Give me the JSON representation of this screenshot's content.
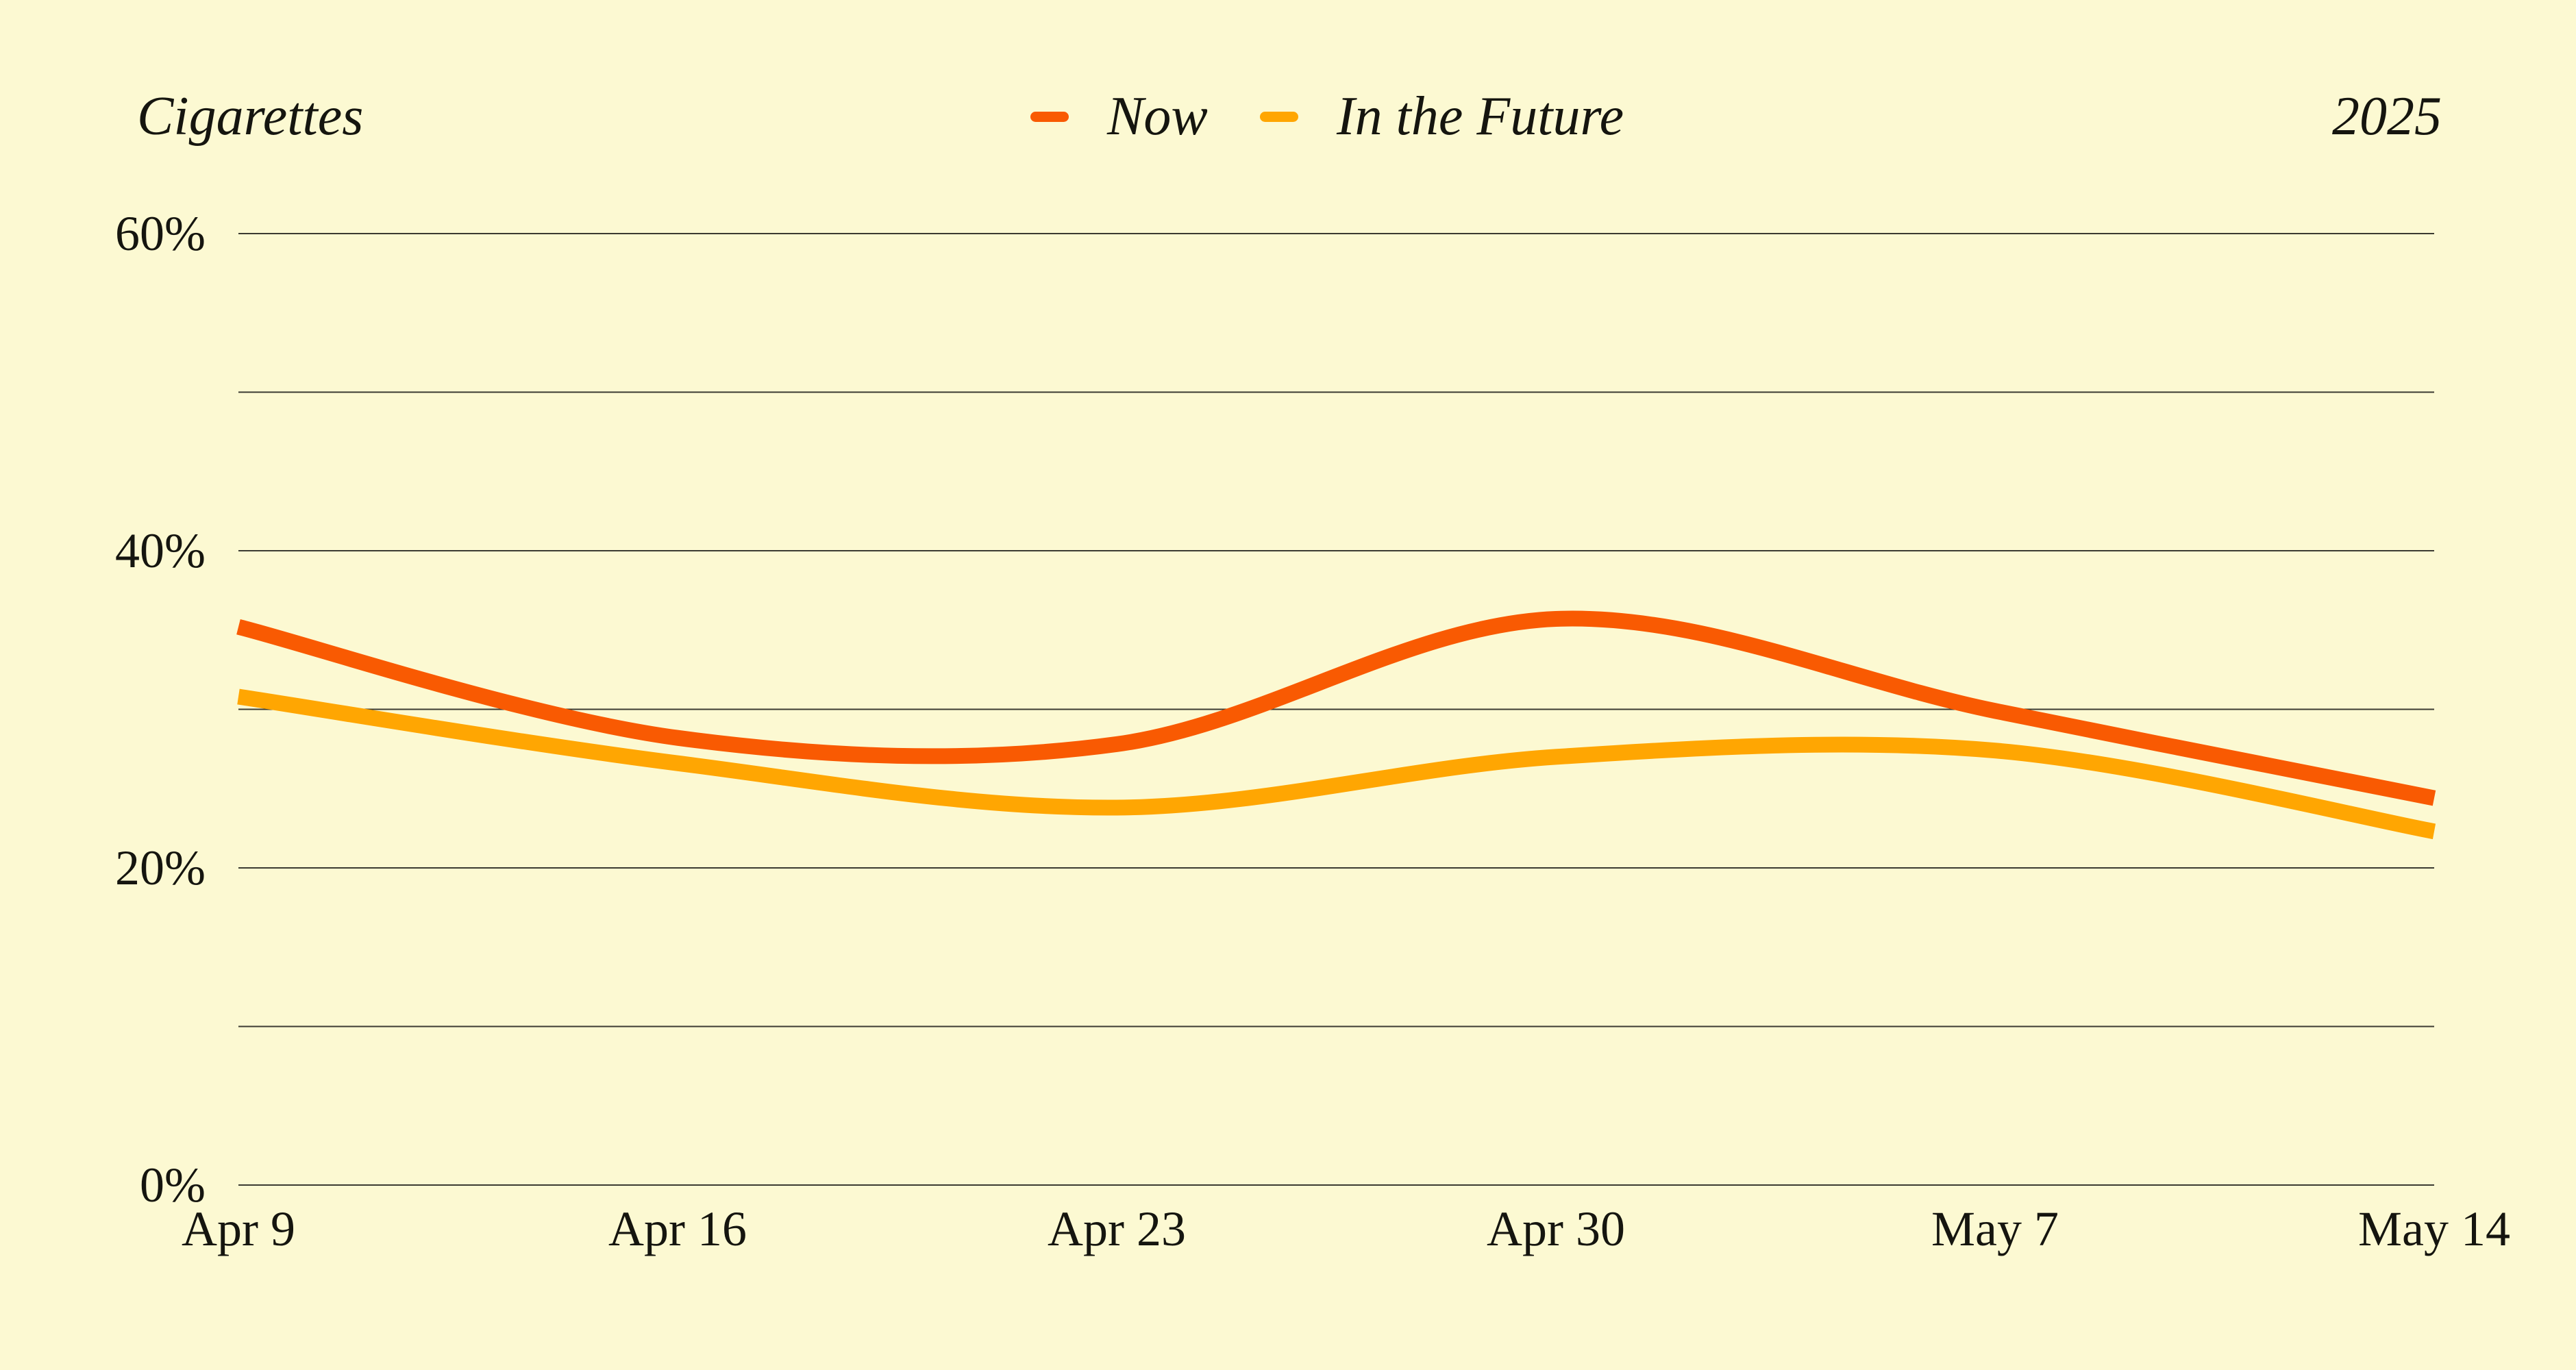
{
  "header": {
    "title": "Cigarettes",
    "year": "2025"
  },
  "legend": [
    {
      "label": "Now",
      "color": "#F95A02"
    },
    {
      "label": "In the Future",
      "color": "#FFA602"
    }
  ],
  "chart_data": {
    "type": "line",
    "title": "Cigarettes",
    "x": [
      "Apr 9",
      "Apr 16",
      "Apr 23",
      "Apr 30",
      "May 7",
      "May 14"
    ],
    "series": [
      {
        "name": "Now",
        "color": "#F95A02",
        "values": [
          35.2,
          28.2,
          27.8,
          35.7,
          29.9,
          24.4
        ]
      },
      {
        "name": "In the Future",
        "color": "#FFA602",
        "values": [
          30.8,
          26.6,
          23.8,
          27.0,
          27.4,
          22.3
        ]
      }
    ],
    "ylim": [
      0,
      60
    ],
    "yticks": [
      {
        "value": 0,
        "label": "0%"
      },
      {
        "value": 10,
        "label": ""
      },
      {
        "value": 20,
        "label": "20%"
      },
      {
        "value": 30,
        "label": ""
      },
      {
        "value": 40,
        "label": "40%"
      },
      {
        "value": 50,
        "label": ""
      },
      {
        "value": 60,
        "label": "60%"
      }
    ],
    "grid": true,
    "legend_position": "top-center",
    "curve": "smooth"
  },
  "colors": {
    "background": "#FCF9D2",
    "text": "#15150F",
    "gridline": "#3B3B31"
  }
}
